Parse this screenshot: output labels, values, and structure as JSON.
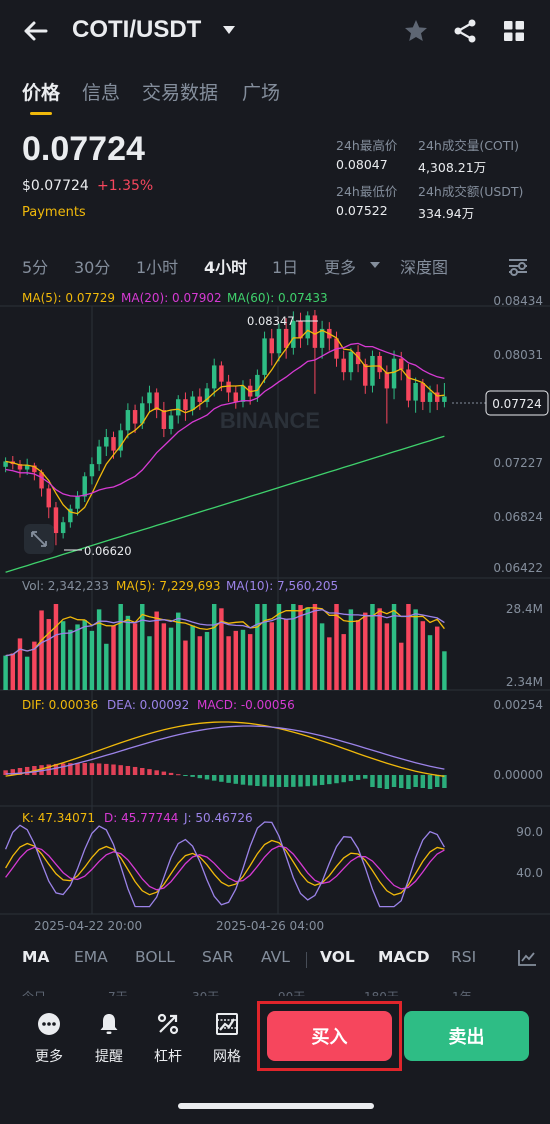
{
  "header": {
    "pair": "COTI/USDT"
  },
  "tabs": [
    "价格",
    "信息",
    "交易数据",
    "广场"
  ],
  "price": {
    "last": "0.07724",
    "usd": "$0.07724",
    "change": "+1.35%",
    "tag": "Payments"
  },
  "stats": {
    "high_label": "24h最高价",
    "high_value": "0.08047",
    "low_label": "24h最低价",
    "low_value": "0.07522",
    "vol_coin_label": "24h成交量(COTI)",
    "vol_coin_value": "4,308.21万",
    "vol_usdt_label": "24h成交额(USDT)",
    "vol_usdt_value": "334.94万"
  },
  "periods": [
    "5分",
    "30分",
    "1小时",
    "4小时",
    "1日",
    "更多",
    "深度图"
  ],
  "active_period": "4小时",
  "main_chart": {
    "ma5": "MA(5): 0.07729",
    "ma20": "MA(20): 0.07902",
    "ma60": "MA(60): 0.07433",
    "axis": [
      "0.08434",
      "0.08031",
      "0.07227",
      "0.06824",
      "0.06422"
    ],
    "current_price_tag": "0.07724",
    "high_marker": "0.08347",
    "low_marker": "0.06620",
    "watermark": "BINANCE"
  },
  "volume_chart": {
    "vol": "Vol: 2,342,233",
    "ma5": "MA(5): 7,229,693",
    "ma10": "MA(10): 7,560,205",
    "axis_top": "28.4M",
    "axis_bottom": "2.34M"
  },
  "macd_chart": {
    "dif": "DIF: 0.00036",
    "dea": "DEA: 0.00092",
    "macd": "MACD: -0.00056",
    "axis_top": "0.00254",
    "axis_mid": "0.00000"
  },
  "kdj_chart": {
    "k": "K: 47.34071",
    "d": "D: 45.77744",
    "j": "J: 50.46726",
    "axis_top": "90.0",
    "axis_mid": "40.0"
  },
  "dates": [
    "2025-04-22 20:00",
    "2025-04-26 04:00"
  ],
  "indicators": [
    "MA",
    "EMA",
    "BOLL",
    "SAR",
    "AVL",
    "VOL",
    "MACD",
    "RSI"
  ],
  "active_indicators": [
    "MA",
    "VOL",
    "MACD"
  ],
  "ranges": [
    "今日",
    "7天",
    "30天",
    "90天",
    "180天",
    "1年"
  ],
  "actions": [
    "更多",
    "提醒",
    "杠杆",
    "网格"
  ],
  "buy_label": "买入",
  "sell_label": "卖出",
  "colors": {
    "up": "#2ebd85",
    "down": "#f6465d",
    "accent": "#f0b90b",
    "ma5": "#f0b90b",
    "ma20": "#d63ad3",
    "ma60": "#3fd16c",
    "ma10": "#9b83e8"
  },
  "chart_data": {
    "type": "candlestick",
    "candles": [
      [
        0.072,
        0.0724,
        0.0716,
        0.0727
      ],
      [
        0.0724,
        0.0722,
        0.0718,
        0.0728
      ],
      [
        0.0722,
        0.0718,
        0.0712,
        0.0725
      ],
      [
        0.0718,
        0.0721,
        0.0714,
        0.0726
      ],
      [
        0.0721,
        0.0716,
        0.071,
        0.0723
      ],
      [
        0.0716,
        0.0704,
        0.0698,
        0.0718
      ],
      [
        0.0704,
        0.069,
        0.0682,
        0.0707
      ],
      [
        0.069,
        0.0671,
        0.0662,
        0.0694
      ],
      [
        0.0671,
        0.0679,
        0.0667,
        0.0683
      ],
      [
        0.0679,
        0.0689,
        0.0675,
        0.0692
      ],
      [
        0.0689,
        0.0698,
        0.0684,
        0.0702
      ],
      [
        0.0698,
        0.0713,
        0.0694,
        0.0716
      ],
      [
        0.0713,
        0.0722,
        0.0707,
        0.0727
      ],
      [
        0.0722,
        0.0735,
        0.0717,
        0.074
      ],
      [
        0.0735,
        0.0742,
        0.0728,
        0.0748
      ],
      [
        0.0742,
        0.0732,
        0.0726,
        0.0746
      ],
      [
        0.0732,
        0.0747,
        0.0727,
        0.0752
      ],
      [
        0.0747,
        0.0762,
        0.0741,
        0.0767
      ],
      [
        0.0762,
        0.0752,
        0.0745,
        0.0766
      ],
      [
        0.0752,
        0.0767,
        0.0748,
        0.0772
      ],
      [
        0.0767,
        0.0775,
        0.076,
        0.078
      ],
      [
        0.0775,
        0.0762,
        0.0756,
        0.0778
      ],
      [
        0.0762,
        0.0748,
        0.0742,
        0.0768
      ],
      [
        0.0748,
        0.0758,
        0.0744,
        0.0762
      ],
      [
        0.0758,
        0.077,
        0.0752,
        0.0773
      ],
      [
        0.077,
        0.0762,
        0.0754,
        0.0775
      ],
      [
        0.0762,
        0.0772,
        0.0758,
        0.0776
      ],
      [
        0.0772,
        0.0768,
        0.0762,
        0.0778
      ],
      [
        0.0768,
        0.0778,
        0.0764,
        0.0782
      ],
      [
        0.0778,
        0.0795,
        0.0772,
        0.08
      ],
      [
        0.0795,
        0.0783,
        0.0776,
        0.0798
      ],
      [
        0.0783,
        0.0775,
        0.0768,
        0.0788
      ],
      [
        0.0775,
        0.0768,
        0.0763,
        0.078
      ],
      [
        0.0768,
        0.078,
        0.0764,
        0.0784
      ],
      [
        0.078,
        0.0772,
        0.0766,
        0.0785
      ],
      [
        0.0772,
        0.0788,
        0.0768,
        0.0792
      ],
      [
        0.0788,
        0.0815,
        0.0782,
        0.082
      ],
      [
        0.0815,
        0.0804,
        0.0795,
        0.0822
      ],
      [
        0.0804,
        0.0822,
        0.0798,
        0.0826
      ],
      [
        0.0822,
        0.0808,
        0.08,
        0.083
      ],
      [
        0.0808,
        0.0828,
        0.0803,
        0.0835
      ],
      [
        0.0828,
        0.0815,
        0.0808,
        0.0834
      ],
      [
        0.0815,
        0.0832,
        0.081,
        0.0835
      ],
      [
        0.0832,
        0.0808,
        0.0774,
        0.0836
      ],
      [
        0.0808,
        0.0822,
        0.08,
        0.0828
      ],
      [
        0.0822,
        0.0815,
        0.0806,
        0.0827
      ],
      [
        0.0815,
        0.08,
        0.0794,
        0.082
      ],
      [
        0.08,
        0.079,
        0.0784,
        0.0806
      ],
      [
        0.079,
        0.0805,
        0.0784,
        0.0808
      ],
      [
        0.0805,
        0.0796,
        0.079,
        0.081
      ],
      [
        0.0796,
        0.078,
        0.0774,
        0.08
      ],
      [
        0.078,
        0.0802,
        0.0775,
        0.0806
      ],
      [
        0.0802,
        0.079,
        0.0785,
        0.0805
      ],
      [
        0.079,
        0.0778,
        0.0752,
        0.0795
      ],
      [
        0.0778,
        0.08,
        0.077,
        0.0806
      ],
      [
        0.08,
        0.0792,
        0.0784,
        0.0805
      ],
      [
        0.0792,
        0.0769,
        0.0764,
        0.0796
      ],
      [
        0.0769,
        0.0782,
        0.076,
        0.0786
      ],
      [
        0.0782,
        0.0768,
        0.0762,
        0.0785
      ],
      [
        0.0768,
        0.0775,
        0.076,
        0.078
      ],
      [
        0.0775,
        0.0768,
        0.0762,
        0.0781
      ],
      [
        0.0768,
        0.0772,
        0.0764,
        0.0782
      ]
    ]
  }
}
